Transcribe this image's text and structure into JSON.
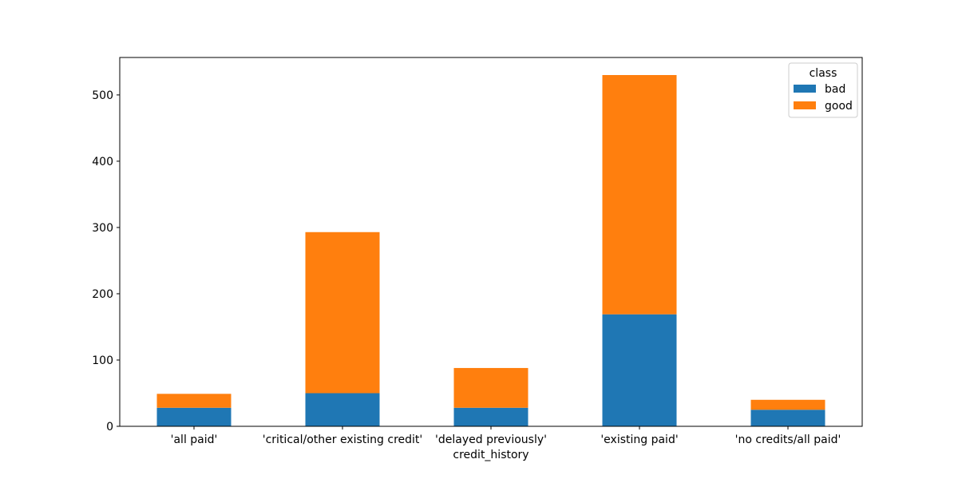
{
  "chart_data": {
    "type": "bar",
    "stacked": true,
    "categories": [
      "'all paid'",
      "'critical/other existing credit'",
      "'delayed previously'",
      "'existing paid'",
      "'no credits/all paid'"
    ],
    "series": [
      {
        "name": "bad",
        "values": [
          28,
          50,
          28,
          169,
          25
        ],
        "color": "#1f77b4"
      },
      {
        "name": "good",
        "values": [
          21,
          243,
          60,
          361,
          15
        ],
        "color": "#ff7f0e"
      }
    ],
    "title": "",
    "xlabel": "credit_history",
    "ylabel": "",
    "ylim": [
      0,
      556.5
    ],
    "yticks": [
      0,
      100,
      200,
      300,
      400,
      500
    ],
    "grid": false,
    "legend": {
      "title": "class",
      "placement": "top-right"
    }
  }
}
